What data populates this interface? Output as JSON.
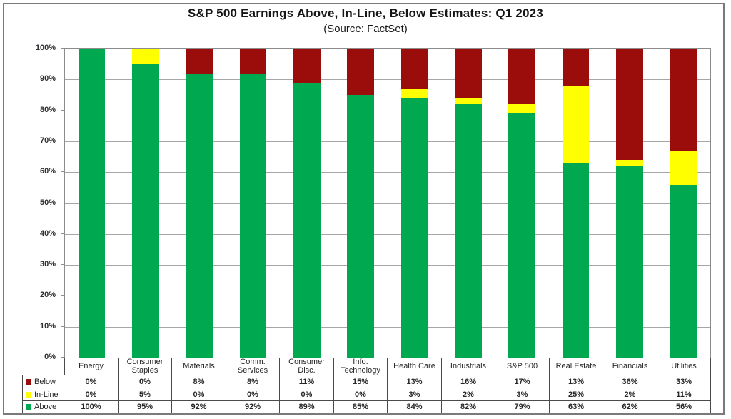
{
  "title": "S&P 500 Earnings Above, In-Line, Below Estimates: Q1 2023",
  "subtitle": "(Source: FactSet)",
  "colors": {
    "above": "#00A94F",
    "inline": "#FFFF00",
    "below": "#9B0D0B",
    "gridline": "#A6A6A6",
    "plot_border": "#8C8C8C",
    "table_border": "#4A4A4A"
  },
  "chart_data": {
    "type": "bar",
    "stacked": true,
    "title": "S&P 500 Earnings Above, In-Line, Below Estimates: Q1 2023",
    "subtitle": "(Source: FactSet)",
    "categories": [
      "Energy",
      "Consumer Staples",
      "Materials",
      "Comm. Services",
      "Consumer Disc.",
      "Info. Technology",
      "Health Care",
      "Industrials",
      "S&P 500",
      "Real Estate",
      "Financials",
      "Utilities"
    ],
    "series": [
      {
        "name": "Below",
        "color": "#9B0D0B",
        "values": [
          0,
          0,
          8,
          8,
          11,
          15,
          13,
          16,
          17,
          13,
          36,
          33
        ]
      },
      {
        "name": "In-Line",
        "color": "#FFFF00",
        "values": [
          0,
          5,
          0,
          0,
          0,
          0,
          3,
          2,
          3,
          25,
          2,
          11
        ]
      },
      {
        "name": "Above",
        "color": "#00A94F",
        "values": [
          100,
          95,
          92,
          92,
          89,
          85,
          84,
          82,
          79,
          63,
          62,
          56
        ]
      }
    ],
    "xlabel": "",
    "ylabel": "",
    "ylim": [
      0,
      100
    ],
    "y_ticks": [
      "100%",
      "90%",
      "80%",
      "70%",
      "60%",
      "50%",
      "40%",
      "30%",
      "20%",
      "10%",
      "0%"
    ],
    "grid": true,
    "legend_position": "table-left",
    "value_suffix": "%"
  }
}
